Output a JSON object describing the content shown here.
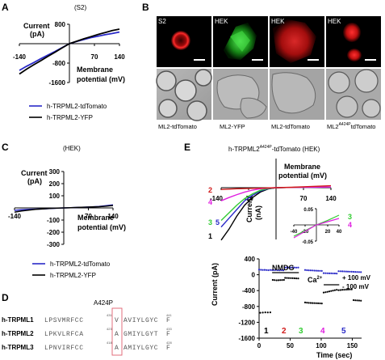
{
  "panel_a": {
    "letter": "A",
    "condition": "(S2)",
    "ylabel_1": "Current",
    "ylabel_2": "(pA)",
    "xlabel_1": "Membrane",
    "xlabel_2": "potential (mV)",
    "legend": [
      "h-TRPML2-tdTomato",
      "h-TRPML2-YFP"
    ]
  },
  "panel_b": {
    "letter": "B",
    "top_labels": [
      "S2",
      "HEK",
      "HEK",
      "HEK"
    ],
    "bottom_labels": [
      "ML2-tdTomato",
      "ML2-YFP",
      "ML2-tdTomato",
      "ML2",
      "A424P",
      "tdTomato"
    ]
  },
  "panel_c": {
    "letter": "C",
    "condition": "(HEK)",
    "ylabel_1": "Current",
    "ylabel_2": "(pA)",
    "xlabel_1": "Membrane",
    "xlabel_2": "potential (mV)",
    "legend": [
      "h-TRPML2-tdTomato",
      "h-TRPML2-YFP"
    ]
  },
  "panel_d": {
    "letter": "D",
    "mutation_label": "A424P",
    "rows": [
      {
        "name": "h-TRPML1",
        "pre": "LPSVMRFCC",
        "num": "431",
        "highlight": "V",
        "post": "AVIYLGYC",
        "end_num": "441",
        "end_char": "F"
      },
      {
        "name": "h-TRPML2",
        "pre": "LPKVLRFCA",
        "num": "423",
        "highlight": "A",
        "post": "GMIYLGYT",
        "end_num": "433",
        "end_char": "F"
      },
      {
        "name": "h-TRPML3",
        "pre": "LPNVIRFCC",
        "num": "418",
        "highlight": "A",
        "post": "AMIYLGYC",
        "end_num": "428",
        "end_char": "F"
      }
    ]
  },
  "panel_e": {
    "letter": "E",
    "title_pre": "h-TRPML2",
    "title_sup": "A424P",
    "title_post": "-tdTomato (HEK)",
    "trace_numbers": [
      "2",
      "4",
      "3",
      "5",
      "1"
    ],
    "inset_numbers": [
      "3",
      "4"
    ],
    "ylabel_1": "Current",
    "ylabel_2": "(nA)",
    "xlabel_1": "Membrane",
    "xlabel_2": "potential (mV)",
    "time_ylabel": "Current (pA)",
    "time_xlabel": "Time (sec)",
    "bar_nmdg": "NMDG",
    "bar_ca": "Ca",
    "bar_ca_sup": "2+",
    "legend_plus": "+ 100 mV",
    "legend_minus": "- 100 mV",
    "phase_numbers": [
      "1",
      "2",
      "3",
      "4",
      "5"
    ],
    "colors": {
      "1": "#000000",
      "2": "#d11919",
      "3": "#33cc33",
      "4": "#e020e0",
      "5": "#2a2ac8"
    }
  },
  "chart_data": [
    {
      "type": "line",
      "panel": "A",
      "xlim": [
        -140,
        140
      ],
      "ylim": [
        -1600,
        800
      ],
      "xticks": [
        -140,
        70,
        140
      ],
      "yticks": [
        800,
        0,
        -800,
        -1600
      ],
      "series": [
        {
          "name": "h-TRPML2-tdTomato",
          "color": "#2a2ac8",
          "x": [
            -140,
            -120,
            -100,
            -80,
            -60,
            -40,
            -20,
            0,
            20,
            40,
            60,
            80,
            100,
            120,
            140
          ],
          "y": [
            -1100,
            -930,
            -780,
            -620,
            -470,
            -320,
            -160,
            0,
            90,
            170,
            250,
            310,
            370,
            420,
            480
          ]
        },
        {
          "name": "h-TRPML2-YFP",
          "color": "#000000",
          "x": [
            -140,
            -120,
            -100,
            -80,
            -60,
            -40,
            -20,
            0,
            20,
            40,
            60,
            80,
            100,
            120,
            140
          ],
          "y": [
            -1250,
            -1050,
            -870,
            -700,
            -520,
            -350,
            -170,
            0,
            100,
            200,
            290,
            380,
            460,
            540,
            600
          ]
        }
      ]
    },
    {
      "type": "line",
      "panel": "C",
      "xlim": [
        -140,
        140
      ],
      "ylim": [
        -300,
        300
      ],
      "xticks": [
        -140,
        70,
        140
      ],
      "yticks": [
        300,
        200,
        100,
        0,
        -100,
        -200,
        -300
      ],
      "series": [
        {
          "name": "h-TRPML2-tdTomato",
          "color": "#2a2ac8",
          "x": [
            -140,
            -120,
            -100,
            -80,
            -60,
            -40,
            -20,
            0,
            20,
            40,
            60,
            80,
            100,
            120,
            140
          ],
          "y": [
            -20,
            -15,
            -12,
            -10,
            -8,
            -5,
            -3,
            0,
            2,
            4,
            6,
            8,
            12,
            18,
            25
          ]
        },
        {
          "name": "h-TRPML2-YFP",
          "color": "#000000",
          "x": [
            -140,
            -120,
            -100,
            -80,
            -60,
            -40,
            -20,
            0,
            20,
            40,
            60,
            80,
            100,
            120,
            140
          ],
          "y": [
            -35,
            -25,
            -18,
            -12,
            -8,
            -4,
            -2,
            0,
            2,
            4,
            6,
            8,
            10,
            14,
            20
          ]
        }
      ]
    },
    {
      "type": "line",
      "panel": "E-iv",
      "xlim": [
        -140,
        140
      ],
      "xticks": [
        -140,
        -70,
        70,
        140
      ],
      "series": [
        {
          "name": "1",
          "color": "#000000",
          "x": [
            -140,
            -120,
            -100,
            -80,
            -60,
            -40,
            -20,
            0,
            40,
            80,
            140
          ],
          "y": [
            -2.4,
            -1.9,
            -1.3,
            -0.8,
            -0.45,
            -0.2,
            -0.06,
            0,
            0.01,
            0.02,
            0.03
          ]
        },
        {
          "name": "5",
          "color": "#2a2ac8",
          "x": [
            -140,
            -120,
            -100,
            -80,
            -60,
            -40,
            -20,
            0,
            40,
            80,
            140
          ],
          "y": [
            -1.8,
            -1.4,
            -1.0,
            -0.6,
            -0.35,
            -0.15,
            -0.05,
            0,
            0.01,
            0.02,
            0.03
          ]
        },
        {
          "name": "3",
          "color": "#33cc33",
          "x": [
            -140,
            -120,
            -100,
            -80,
            -60,
            -40,
            -20,
            0,
            40,
            80,
            140
          ],
          "y": [
            -1.5,
            -1.15,
            -0.8,
            -0.5,
            -0.28,
            -0.12,
            -0.04,
            0,
            0.01,
            0.02,
            0.03
          ]
        },
        {
          "name": "4",
          "color": "#e020e0",
          "x": [
            -140,
            -120,
            -100,
            -80,
            -60,
            -40,
            -20,
            0,
            40,
            80,
            140
          ],
          "y": [
            -0.6,
            -0.45,
            -0.32,
            -0.2,
            -0.11,
            -0.05,
            -0.02,
            0,
            0.01,
            0.02,
            0.03
          ]
        },
        {
          "name": "2",
          "color": "#d11919",
          "x": [
            -140,
            -100,
            -60,
            -20,
            0,
            40,
            80,
            140
          ],
          "y": [
            -0.08,
            -0.05,
            -0.03,
            -0.01,
            0,
            0.02,
            0.05,
            0.09
          ]
        }
      ]
    },
    {
      "type": "line",
      "panel": "E-inset",
      "xlim": [
        -40,
        40
      ],
      "ylim": [
        -0.05,
        0.05
      ],
      "xticks": [
        -40,
        -20,
        20,
        40
      ],
      "yticks": [
        0.05,
        -0.05
      ],
      "series": [
        {
          "name": "3",
          "color": "#33cc33",
          "x": [
            -40,
            -20,
            0,
            20,
            40
          ],
          "y": [
            -0.035,
            -0.018,
            0,
            0.014,
            0.03
          ]
        },
        {
          "name": "4",
          "color": "#e020e0",
          "x": [
            -40,
            -20,
            0,
            20,
            40
          ],
          "y": [
            -0.04,
            -0.02,
            0,
            0.01,
            0.02
          ]
        }
      ]
    },
    {
      "type": "scatter",
      "panel": "E-time",
      "xlim": [
        0,
        165
      ],
      "ylim": [
        -1600,
        400
      ],
      "xticks": [
        0,
        50,
        100,
        150
      ],
      "yticks": [
        400,
        0,
        -400,
        -800,
        -1200,
        -1600
      ],
      "series": [
        {
          "name": "+ 100 mV",
          "segments": [
            {
              "color": "#2a2ac8",
              "x": [
                0,
                3,
                6,
                9,
                12,
                15,
                18,
                21,
                24,
                27,
                30,
                33,
                36,
                39
              ],
              "y": [
                130,
                125,
                120,
                122,
                118,
                115,
                120,
                117,
                114,
                118,
                115,
                112,
                116,
                113
              ]
            },
            {
              "color": "#2a2ac8",
              "x": [
                42,
                45,
                48,
                51,
                54,
                57,
                60,
                63
              ],
              "y": [
                180,
                185,
                182,
                180,
                183,
                181,
                179,
                182
              ]
            },
            {
              "color": "#2a2ac8",
              "x": [
                74,
                77,
                80,
                83,
                86,
                89,
                92,
                95,
                98,
                101
              ],
              "y": [
                120,
                115,
                112,
                110,
                108,
                105,
                103,
                100,
                98,
                96
              ]
            },
            {
              "color": "#2a2ac8",
              "x": [
                104,
                107,
                110,
                113,
                116,
                119,
                122,
                125
              ],
              "y": [
                40,
                38,
                36,
                35,
                34,
                33,
                32,
                31
              ]
            },
            {
              "color": "#2a2ac8",
              "x": [
                128,
                131,
                134,
                137,
                140,
                143,
                146,
                149,
                152,
                155,
                158,
                161,
                164
              ],
              "y": [
                90,
                88,
                86,
                84,
                82,
                80,
                78,
                76,
                74,
                72,
                70,
                68,
                66
              ]
            }
          ]
        },
        {
          "name": "- 100 mV",
          "segments": [
            {
              "color": "#000000",
              "x": [
                2,
                6,
                10,
                14,
                18
              ],
              "y": [
                -960,
                -955,
                -950,
                -952,
                -948
              ]
            },
            {
              "color": "#000000",
              "x": [
                22,
                25,
                28,
                31,
                34,
                37,
                40
              ],
              "y": [
                -130,
                -135,
                -140,
                -138,
                -135,
                -132,
                -130
              ]
            },
            {
              "color": "#000000",
              "x": [
                42,
                45,
                48,
                51,
                54,
                57,
                60,
                63
              ],
              "y": [
                -80,
                -82,
                -84,
                -86,
                -88,
                -90,
                -92,
                -94
              ]
            },
            {
              "color": "#000000",
              "x": [
                74,
                77,
                80,
                83,
                86,
                89,
                92,
                95,
                98,
                101
              ],
              "y": [
                -700,
                -705,
                -710,
                -712,
                -714,
                -716,
                -718,
                -720,
                -722,
                -724
              ]
            },
            {
              "color": "#000000",
              "x": [
                104,
                107,
                110,
                113,
                116,
                119,
                122,
                125
              ],
              "y": [
                -450,
                -440,
                -430,
                -420,
                -410,
                -400,
                -390,
                -380
              ]
            },
            {
              "color": "#000000",
              "x": [
                128,
                131,
                134,
                137,
                140,
                143,
                146,
                149
              ],
              "y": [
                -390,
                -385,
                -380,
                -378,
                -376,
                -374,
                -372,
                -370
              ]
            },
            {
              "color": "#000000",
              "x": [
                152,
                155,
                158,
                161,
                164
              ],
              "y": [
                -640,
                -645,
                -650,
                -652,
                -655
              ]
            }
          ]
        }
      ],
      "bars": [
        {
          "label": "NMDG",
          "x": [
            21,
            64
          ]
        },
        {
          "label": "Ca2+",
          "x": [
            104,
            129
          ]
        }
      ]
    }
  ]
}
